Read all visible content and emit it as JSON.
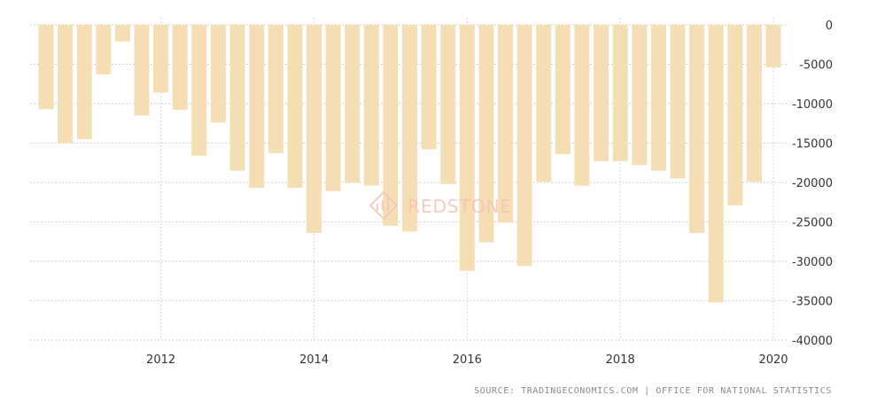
{
  "chart_data": {
    "type": "bar",
    "title": "",
    "xlabel": "",
    "ylabel": "",
    "bar_color": "#F5DEB3",
    "grid": true,
    "ylim": [
      -40000,
      0
    ],
    "y_ticks": [
      0,
      -5000,
      -10000,
      -15000,
      -20000,
      -25000,
      -30000,
      -35000,
      -40000
    ],
    "y_tick_labels": [
      "0",
      "-5000",
      "-10000",
      "-15000",
      "-20000",
      "-25000",
      "-30000",
      "-35000",
      "-40000"
    ],
    "x_tick_labels": [
      "2012",
      "2014",
      "2016",
      "2018",
      "2020"
    ],
    "categories": [
      "2010 Q2",
      "2010 Q3",
      "2010 Q4",
      "2011 Q1",
      "2011 Q2",
      "2011 Q3",
      "2011 Q4",
      "2012 Q1",
      "2012 Q2",
      "2012 Q3",
      "2012 Q4",
      "2013 Q1",
      "2013 Q2",
      "2013 Q3",
      "2013 Q4",
      "2014 Q1",
      "2014 Q2",
      "2014 Q3",
      "2014 Q4",
      "2015 Q1",
      "2015 Q2",
      "2015 Q3",
      "2015 Q4",
      "2016 Q1",
      "2016 Q2",
      "2016 Q3",
      "2016 Q4",
      "2017 Q1",
      "2017 Q2",
      "2017 Q3",
      "2017 Q4",
      "2018 Q1",
      "2018 Q2",
      "2018 Q3",
      "2018 Q4",
      "2019 Q1",
      "2019 Q2",
      "2019 Q3",
      "2019 Q4"
    ],
    "values": [
      -10700,
      -15000,
      -14500,
      -6300,
      -2100,
      -11500,
      -8600,
      -10800,
      -16600,
      -12400,
      -18500,
      -20700,
      -16300,
      -20700,
      -26400,
      -21100,
      -20000,
      -20400,
      -25500,
      -26200,
      -15800,
      -20200,
      -31200,
      -27600,
      -25100,
      -30600,
      -19900,
      -16400,
      -20400,
      -17300,
      -17300,
      -17800,
      -18500,
      -19500,
      -26400,
      -35200,
      -22900,
      -19900,
      -5400
    ]
  },
  "watermark": {
    "text": "REDSTONE"
  },
  "source": "SOURCE: TRADINGECONOMICS.COM | OFFICE FOR NATIONAL STATISTICS"
}
